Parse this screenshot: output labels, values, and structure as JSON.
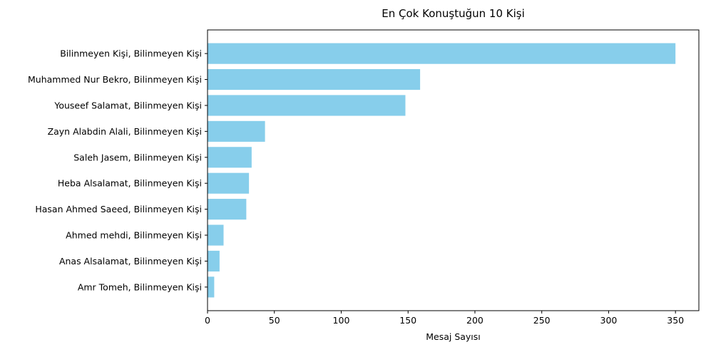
{
  "chart_data": {
    "type": "bar",
    "orientation": "horizontal",
    "title": "En Çok Konuştuğun 10 Kişi",
    "xlabel": "Mesaj Sayısı",
    "ylabel": "",
    "categories": [
      "Bilinmeyen Kişi, Bilinmeyen Kişi",
      "Muhammed Nur Bekro, Bilinmeyen Kişi",
      "Youseef Salamat, Bilinmeyen Kişi",
      "Zayn Alabdin Alali, Bilinmeyen Kişi",
      "Saleh Jasem, Bilinmeyen Kişi",
      "Heba Alsalamat, Bilinmeyen Kişi",
      "Hasan Ahmed Saeed, Bilinmeyen Kişi",
      "Ahmed mehdi, Bilinmeyen Kişi",
      "Anas Alsalamat, Bilinmeyen Kişi",
      "Amr Tomeh, Bilinmeyen Kişi"
    ],
    "values": [
      350,
      159,
      148,
      43,
      33,
      31,
      29,
      12,
      9,
      5
    ],
    "xlim": [
      0,
      367.5
    ],
    "xticks": [
      0,
      50,
      100,
      150,
      200,
      250,
      300,
      350
    ],
    "bar_color": "#87ceeb",
    "grid": false,
    "legend": "none"
  }
}
